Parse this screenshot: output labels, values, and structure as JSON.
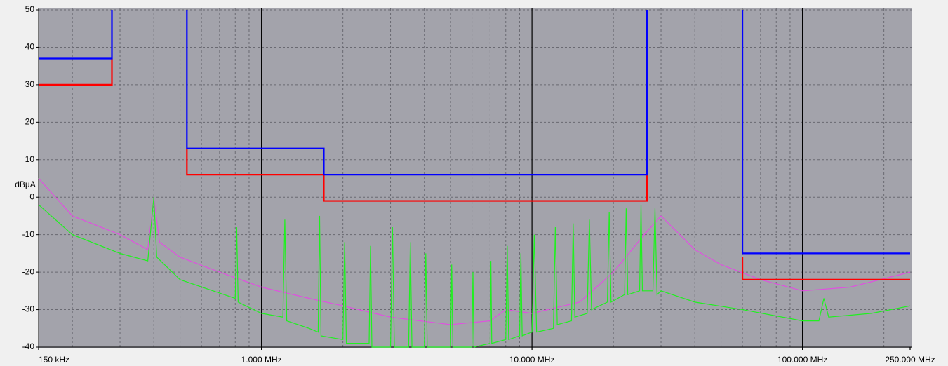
{
  "chart_data": {
    "type": "line",
    "y_label": "dBµA",
    "x_scale": "log",
    "xlim": [
      0.15,
      250
    ],
    "ylim": [
      -40,
      50
    ],
    "xticks": [
      {
        "value": 0.15,
        "label": "150 kHz"
      },
      {
        "value": 1,
        "label": "1.000 MHz"
      },
      {
        "value": 10,
        "label": "10.000 MHz"
      },
      {
        "value": 100,
        "label": "100.000 MHz"
      },
      {
        "value": 250,
        "label": "250.000 MHz"
      }
    ],
    "xminor_ticks": [
      0.2,
      0.3,
      0.4,
      0.5,
      0.6,
      0.7,
      0.8,
      0.9,
      2,
      3,
      4,
      5,
      6,
      7,
      8,
      9,
      20,
      30,
      40,
      50,
      60,
      70,
      80,
      90,
      200
    ],
    "yticks": [
      50,
      40,
      30,
      20,
      10,
      0,
      -10,
      -20,
      -30,
      -40
    ],
    "grid": true,
    "series": [
      {
        "color": "#e050e0",
        "x": [
          0.15,
          0.2,
          0.3,
          0.38,
          0.4,
          0.42,
          0.5,
          0.7,
          1,
          1.5,
          2,
          3,
          5,
          7,
          8,
          10,
          15,
          20,
          26,
          30,
          40,
          50,
          70,
          100,
          150,
          250
        ],
        "values": [
          5,
          -5,
          -10,
          -14,
          0,
          -12,
          -16,
          -20,
          -24,
          -27,
          -29,
          -32,
          -34,
          -33,
          -30,
          -31,
          -28,
          -20,
          -10,
          -5,
          -14,
          -18,
          -22,
          -25,
          -24,
          -20
        ]
      },
      {
        "color": "#20f020",
        "x": [
          0.15,
          0.2,
          0.3,
          0.38,
          0.4,
          0.41,
          0.5,
          0.8,
          0.81,
          0.82,
          1.0,
          1.2,
          1.22,
          1.24,
          1.5,
          1.62,
          1.64,
          1.66,
          2.0,
          2.03,
          2.06,
          2.5,
          2.53,
          2.56,
          3.0,
          3.05,
          3.1,
          3.5,
          3.55,
          3.6,
          4.0,
          4.05,
          4.1,
          5.0,
          5.05,
          5.1,
          6.0,
          6.05,
          6.1,
          7.0,
          7.05,
          7.1,
          8.0,
          8.1,
          8.2,
          9.0,
          9.1,
          9.2,
          10,
          10.2,
          10.4,
          12,
          12.2,
          12.4,
          14,
          14.2,
          14.4,
          16,
          16.3,
          16.6,
          19,
          19.3,
          19.6,
          22,
          22.3,
          22.6,
          25,
          25.3,
          25.6,
          28,
          28.5,
          29,
          30,
          40,
          60,
          100,
          115,
          120,
          125,
          180,
          250
        ],
        "values": [
          -2,
          -10,
          -15,
          -17,
          0,
          -16,
          -22,
          -27,
          -8,
          -28,
          -31,
          -32,
          -6,
          -33,
          -35,
          -36,
          -5,
          -37,
          -38,
          -12,
          -39,
          -39,
          -13,
          -40,
          -40,
          -8,
          -40,
          -40,
          -12,
          -40,
          -40,
          -15,
          -40,
          -40,
          -18,
          -40,
          -40,
          -20,
          -40,
          -39,
          -17,
          -39,
          -38,
          -13,
          -38,
          -37,
          -15,
          -37,
          -36,
          -10,
          -36,
          -35,
          -8,
          -34,
          -33,
          -7,
          -32,
          -31,
          -6,
          -30,
          -28,
          -4,
          -28,
          -26,
          -3,
          -26,
          -25,
          -2,
          -25,
          -25,
          -3,
          -26,
          -25,
          -28,
          -30,
          -33,
          -33,
          -27,
          -32,
          -31,
          -29
        ]
      },
      {
        "color": "#ff0000",
        "x": [
          0.15,
          0.28,
          0.28,
          null,
          0.53,
          0.53,
          1.7,
          1.7,
          26.6,
          26.6,
          null,
          60,
          60,
          250
        ],
        "values": [
          30,
          30,
          37,
          null,
          13,
          6,
          6,
          -1,
          -1,
          6,
          null,
          -16,
          -22,
          -22
        ]
      },
      {
        "color": "#0000ff",
        "x": [
          0.15,
          0.28,
          0.28,
          null,
          0.53,
          0.53,
          1.7,
          1.7,
          26.6,
          26.6,
          null,
          60,
          60,
          250
        ],
        "values": [
          37,
          37,
          50,
          null,
          50,
          13,
          13,
          6,
          6,
          50,
          null,
          50,
          -15,
          -15
        ]
      }
    ]
  }
}
